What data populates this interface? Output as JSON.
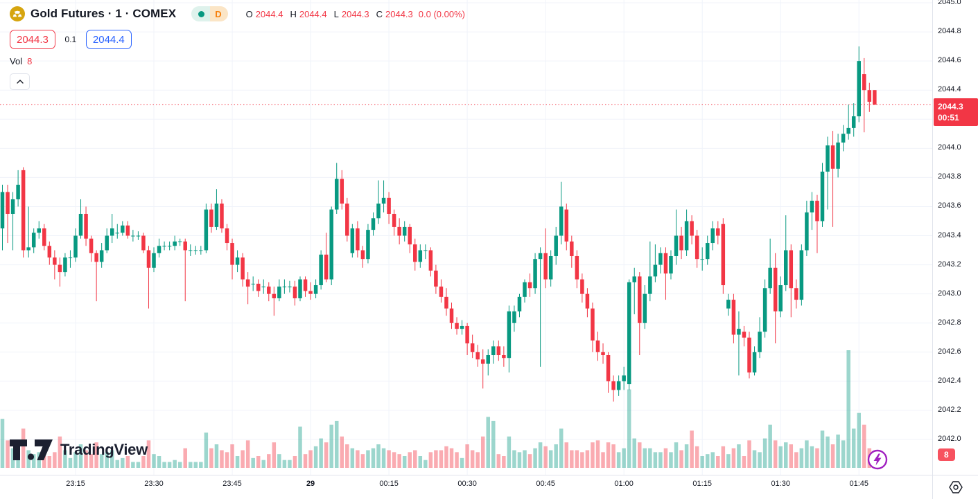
{
  "header": {
    "symbol_icon": "gold-circle-icon",
    "title": "Gold Futures · 1 · COMEX",
    "market_status_icon": "market-status-dot",
    "data_mode_badge": "D",
    "ohlc": {
      "open_label": "O",
      "open": "2044.4",
      "high_label": "H",
      "high": "2044.4",
      "low_label": "L",
      "low": "2044.3",
      "close_label": "C",
      "close": "2044.3",
      "change": "0.0 (0.00%)"
    },
    "bid": "2044.3",
    "spread": "0.1",
    "ask": "2044.4",
    "vol_label": "Vol",
    "vol_value": "8"
  },
  "watermark": {
    "logo_text": "TradingView"
  },
  "price_axis": {
    "ticks": [
      {
        "label": "2045.0",
        "price": 2045.0
      },
      {
        "label": "2044.8",
        "price": 2044.8
      },
      {
        "label": "2044.6",
        "price": 2044.6
      },
      {
        "label": "2044.4",
        "price": 2044.4
      },
      {
        "label": "2044.0",
        "price": 2044.0
      },
      {
        "label": "2043.8",
        "price": 2043.8
      },
      {
        "label": "2043.6",
        "price": 2043.6
      },
      {
        "label": "2043.4",
        "price": 2043.4
      },
      {
        "label": "2043.2",
        "price": 2043.2
      },
      {
        "label": "2043.0",
        "price": 2043.0
      },
      {
        "label": "2042.8",
        "price": 2042.8
      },
      {
        "label": "2042.6",
        "price": 2042.6
      },
      {
        "label": "2042.4",
        "price": 2042.4
      },
      {
        "label": "2042.2",
        "price": 2042.2
      },
      {
        "label": "2042.0",
        "price": 2042.0
      }
    ],
    "last_price_label": {
      "price": "2044.3",
      "countdown": "00:51"
    },
    "vol_badge": "8"
  },
  "time_axis": {
    "ticks": [
      {
        "label": "23:15",
        "index": 14,
        "bold": false
      },
      {
        "label": "23:30",
        "index": 29,
        "bold": false
      },
      {
        "label": "23:45",
        "index": 44,
        "bold": false
      },
      {
        "label": "29",
        "index": 59,
        "bold": true
      },
      {
        "label": "00:15",
        "index": 74,
        "bold": false
      },
      {
        "label": "00:30",
        "index": 89,
        "bold": false
      },
      {
        "label": "00:45",
        "index": 104,
        "bold": false
      },
      {
        "label": "01:00",
        "index": 119,
        "bold": false
      },
      {
        "label": "01:15",
        "index": 134,
        "bold": false
      },
      {
        "label": "01:30",
        "index": 149,
        "bold": false
      },
      {
        "label": "01:45",
        "index": 164,
        "bold": false
      }
    ]
  },
  "colors": {
    "up": "#089981",
    "down": "#f23645",
    "vol_up": "rgba(8,153,129,0.40)",
    "vol_down": "rgba(242,54,69,0.42)",
    "grid": "#f0f3fa",
    "axis_text": "#131722",
    "accent_blue": "#2962ff",
    "last_label_bg": "#f23645",
    "vol_badge_bg": "#f7525f",
    "bolt_purple": "#a020c0",
    "gold": "#d6a50f"
  },
  "chart_data": {
    "type": "candlestick",
    "title": "Gold Futures · 1 · COMEX",
    "interval": "1 minute",
    "first_candle_time": "23:01",
    "last_candle_time": "01:48",
    "session_break_label": "29",
    "last_price": 2044.3,
    "ylim": [
      2041.9,
      2045.05
    ],
    "grid": {
      "top": 2045.0,
      "bottom": 2042.0,
      "step": 0.2
    },
    "legend_position": "top-left",
    "grid_on": true,
    "candles_format": [
      "open",
      "high",
      "low",
      "close",
      "volume"
    ],
    "candles": [
      [
        2043.45,
        2043.75,
        2043.3,
        2043.7,
        25
      ],
      [
        2043.7,
        2043.75,
        2043.35,
        2043.55,
        14
      ],
      [
        2043.55,
        2043.7,
        2043.3,
        2043.65,
        10
      ],
      [
        2043.65,
        2043.85,
        2043.6,
        2043.75,
        9
      ],
      [
        2043.85,
        2043.87,
        2043.25,
        2043.3,
        20
      ],
      [
        2043.3,
        2043.6,
        2043.25,
        2043.32,
        9
      ],
      [
        2043.32,
        2043.45,
        2043.28,
        2043.42,
        7
      ],
      [
        2043.42,
        2043.5,
        2043.38,
        2043.45,
        8
      ],
      [
        2043.45,
        2043.48,
        2043.3,
        2043.33,
        6
      ],
      [
        2043.33,
        2043.36,
        2043.2,
        2043.25,
        6
      ],
      [
        2043.25,
        2043.3,
        2043.1,
        2043.2,
        8
      ],
      [
        2043.2,
        2043.25,
        2043.05,
        2043.15,
        16
      ],
      [
        2043.15,
        2043.28,
        2043.12,
        2043.25,
        9
      ],
      [
        2043.25,
        2043.3,
        2043.18,
        2043.25,
        5
      ],
      [
        2043.25,
        2043.45,
        2043.22,
        2043.4,
        8
      ],
      [
        2043.4,
        2043.65,
        2043.38,
        2043.55,
        12
      ],
      [
        2043.55,
        2043.6,
        2043.33,
        2043.38,
        9
      ],
      [
        2043.38,
        2043.4,
        2043.22,
        2043.28,
        7
      ],
      [
        2043.28,
        2043.3,
        2042.95,
        2043.22,
        13
      ],
      [
        2043.22,
        2043.35,
        2043.18,
        2043.3,
        7
      ],
      [
        2043.3,
        2043.45,
        2043.28,
        2043.4,
        8
      ],
      [
        2043.4,
        2043.55,
        2043.35,
        2043.45,
        9
      ],
      [
        2043.42,
        2043.48,
        2043.38,
        2043.42,
        4
      ],
      [
        2043.42,
        2043.5,
        2043.4,
        2043.47,
        5
      ],
      [
        2043.47,
        2043.5,
        2043.38,
        2043.4,
        6
      ],
      [
        2043.4,
        2043.44,
        2043.36,
        2043.4,
        3
      ],
      [
        2043.4,
        2043.43,
        2043.37,
        2043.4,
        3
      ],
      [
        2043.4,
        2043.42,
        2043.28,
        2043.3,
        6
      ],
      [
        2043.3,
        2043.33,
        2042.9,
        2043.18,
        14
      ],
      [
        2043.18,
        2043.32,
        2043.15,
        2043.28,
        7
      ],
      [
        2043.28,
        2043.38,
        2043.25,
        2043.33,
        6
      ],
      [
        2043.33,
        2043.36,
        2043.3,
        2043.33,
        3
      ],
      [
        2043.33,
        2043.36,
        2043.3,
        2043.33,
        3
      ],
      [
        2043.33,
        2043.4,
        2043.3,
        2043.36,
        4
      ],
      [
        2043.36,
        2043.38,
        2043.33,
        2043.36,
        3
      ],
      [
        2043.36,
        2043.38,
        2042.95,
        2043.3,
        10
      ],
      [
        2043.3,
        2043.34,
        2043.26,
        2043.3,
        3
      ],
      [
        2043.3,
        2043.33,
        2043.27,
        2043.3,
        3
      ],
      [
        2043.3,
        2043.33,
        2043.27,
        2043.3,
        3
      ],
      [
        2043.3,
        2043.62,
        2043.28,
        2043.58,
        18
      ],
      [
        2043.58,
        2043.62,
        2043.42,
        2043.46,
        10
      ],
      [
        2043.46,
        2043.72,
        2043.44,
        2043.62,
        12
      ],
      [
        2043.62,
        2043.65,
        2043.42,
        2043.45,
        9
      ],
      [
        2043.45,
        2043.48,
        2043.3,
        2043.35,
        8
      ],
      [
        2043.35,
        2043.38,
        2043.1,
        2043.2,
        12
      ],
      [
        2043.2,
        2043.3,
        2043.15,
        2043.25,
        6
      ],
      [
        2043.25,
        2043.28,
        2043.05,
        2043.1,
        9
      ],
      [
        2043.1,
        2043.15,
        2042.93,
        2043.05,
        14
      ],
      [
        2043.07,
        2043.12,
        2043.02,
        2043.07,
        5
      ],
      [
        2043.07,
        2043.1,
        2042.98,
        2043.02,
        6
      ],
      [
        2043.05,
        2043.1,
        2043.0,
        2043.05,
        4
      ],
      [
        2043.05,
        2043.08,
        2042.95,
        2043.0,
        7
      ],
      [
        2043.0,
        2043.05,
        2042.85,
        2042.97,
        13
      ],
      [
        2042.97,
        2043.1,
        2042.95,
        2043.05,
        7
      ],
      [
        2043.05,
        2043.1,
        2043.0,
        2043.05,
        4
      ],
      [
        2043.05,
        2043.09,
        2043.01,
        2043.05,
        4
      ],
      [
        2043.05,
        2043.09,
        2042.92,
        2042.97,
        6
      ],
      [
        2042.97,
        2043.12,
        2042.95,
        2043.1,
        21
      ],
      [
        2043.1,
        2043.12,
        2042.98,
        2043.02,
        7
      ],
      [
        2043.02,
        2043.08,
        2042.96,
        2043.0,
        9
      ],
      [
        2043.0,
        2043.1,
        2042.97,
        2043.06,
        11
      ],
      [
        2043.06,
        2043.3,
        2043.03,
        2043.27,
        15
      ],
      [
        2043.27,
        2043.42,
        2043.08,
        2043.1,
        13
      ],
      [
        2043.1,
        2043.6,
        2043.06,
        2043.58,
        22
      ],
      [
        2043.58,
        2043.9,
        2043.55,
        2043.79,
        24
      ],
      [
        2043.79,
        2043.85,
        2043.58,
        2043.62,
        16
      ],
      [
        2043.62,
        2043.66,
        2043.36,
        2043.4,
        12
      ],
      [
        2043.28,
        2043.48,
        2043.25,
        2043.45,
        10
      ],
      [
        2043.45,
        2043.5,
        2043.25,
        2043.3,
        9
      ],
      [
        2043.3,
        2043.33,
        2043.18,
        2043.24,
        7
      ],
      [
        2043.24,
        2043.48,
        2043.21,
        2043.44,
        9
      ],
      [
        2043.44,
        2043.56,
        2043.4,
        2043.52,
        10
      ],
      [
        2043.52,
        2043.78,
        2043.48,
        2043.62,
        12
      ],
      [
        2043.62,
        2043.78,
        2043.56,
        2043.66,
        10
      ],
      [
        2043.66,
        2043.7,
        2043.48,
        2043.55,
        9
      ],
      [
        2043.55,
        2043.58,
        2043.4,
        2043.46,
        8
      ],
      [
        2043.46,
        2043.52,
        2043.34,
        2043.4,
        7
      ],
      [
        2043.4,
        2043.5,
        2043.36,
        2043.46,
        6
      ],
      [
        2043.46,
        2043.48,
        2043.28,
        2043.34,
        8
      ],
      [
        2043.34,
        2043.38,
        2043.16,
        2043.22,
        9
      ],
      [
        2043.22,
        2043.34,
        2043.18,
        2043.3,
        6
      ],
      [
        2043.3,
        2043.34,
        2043.24,
        2043.3,
        4
      ],
      [
        2043.3,
        2043.32,
        2043.12,
        2043.16,
        8
      ],
      [
        2043.16,
        2043.2,
        2043.0,
        2043.05,
        9
      ],
      [
        2043.05,
        2043.1,
        2042.94,
        2042.98,
        9
      ],
      [
        2042.98,
        2043.04,
        2042.85,
        2042.9,
        11
      ],
      [
        2042.9,
        2042.94,
        2042.76,
        2042.8,
        10
      ],
      [
        2042.8,
        2042.84,
        2042.72,
        2042.76,
        8
      ],
      [
        2042.76,
        2042.82,
        2042.72,
        2042.78,
        5
      ],
      [
        2042.78,
        2042.8,
        2042.58,
        2042.66,
        12
      ],
      [
        2042.66,
        2042.72,
        2042.56,
        2042.6,
        9
      ],
      [
        2042.6,
        2042.65,
        2042.5,
        2042.55,
        8
      ],
      [
        2042.55,
        2042.62,
        2042.35,
        2042.52,
        16
      ],
      [
        2042.52,
        2042.62,
        2042.44,
        2042.58,
        26
      ],
      [
        2042.58,
        2042.68,
        2042.52,
        2042.64,
        24
      ],
      [
        2042.64,
        2042.68,
        2042.54,
        2042.58,
        7
      ],
      [
        2042.58,
        2042.64,
        2042.5,
        2042.56,
        6
      ],
      [
        2042.56,
        2042.92,
        2042.46,
        2042.88,
        16
      ],
      [
        2042.8,
        2042.92,
        2042.74,
        2042.88,
        9
      ],
      [
        2042.88,
        2043.0,
        2042.84,
        2042.98,
        8
      ],
      [
        2042.98,
        2043.1,
        2042.94,
        2043.08,
        9
      ],
      [
        2043.08,
        2043.14,
        2042.98,
        2043.04,
        7
      ],
      [
        2043.04,
        2043.28,
        2043.0,
        2043.24,
        10
      ],
      [
        2043.24,
        2043.32,
        2042.5,
        2043.28,
        13
      ],
      [
        2043.28,
        2043.45,
        2043.04,
        2043.1,
        11
      ],
      [
        2043.1,
        2043.3,
        2043.05,
        2043.26,
        9
      ],
      [
        2043.26,
        2043.46,
        2043.2,
        2043.4,
        12
      ],
      [
        2043.4,
        2043.77,
        2043.34,
        2043.6,
        20
      ],
      [
        2043.58,
        2043.62,
        2043.3,
        2043.36,
        13
      ],
      [
        2043.36,
        2043.4,
        2043.18,
        2043.26,
        9
      ],
      [
        2043.26,
        2043.3,
        2043.04,
        2043.1,
        9
      ],
      [
        2043.1,
        2043.14,
        2042.94,
        2043.0,
        8
      ],
      [
        2043.0,
        2043.04,
        2042.84,
        2042.9,
        9
      ],
      [
        2042.9,
        2042.94,
        2042.6,
        2042.68,
        13
      ],
      [
        2042.68,
        2042.74,
        2042.54,
        2042.6,
        14
      ],
      [
        2042.6,
        2042.66,
        2042.52,
        2042.58,
        8
      ],
      [
        2042.58,
        2042.6,
        2042.32,
        2042.4,
        13
      ],
      [
        2042.4,
        2042.44,
        2042.26,
        2042.34,
        12
      ],
      [
        2042.34,
        2042.44,
        2042.3,
        2042.4,
        8
      ],
      [
        2042.4,
        2042.5,
        2042.34,
        2042.44,
        10
      ],
      [
        2042.38,
        2043.1,
        2042.34,
        2043.08,
        40
      ],
      [
        2043.08,
        2043.18,
        2042.86,
        2043.12,
        15
      ],
      [
        2043.12,
        2043.15,
        2042.58,
        2042.8,
        13
      ],
      [
        2042.8,
        2043.06,
        2042.76,
        2043.0,
        10
      ],
      [
        2043.0,
        2043.36,
        2042.95,
        2043.12,
        10
      ],
      [
        2043.12,
        2043.34,
        2043.08,
        2043.2,
        8
      ],
      [
        2043.2,
        2043.32,
        2043.14,
        2043.28,
        8
      ],
      [
        2043.28,
        2043.32,
        2042.96,
        2043.14,
        10
      ],
      [
        2043.14,
        2043.3,
        2043.1,
        2043.26,
        8
      ],
      [
        2043.26,
        2043.58,
        2043.2,
        2043.4,
        13
      ],
      [
        2043.4,
        2043.46,
        2043.24,
        2043.3,
        9
      ],
      [
        2043.3,
        2043.58,
        2043.26,
        2043.5,
        12
      ],
      [
        2043.5,
        2043.54,
        2043.34,
        2043.4,
        19
      ],
      [
        2043.4,
        2043.44,
        2043.18,
        2043.24,
        11
      ],
      [
        2043.24,
        2043.32,
        2043.16,
        2043.24,
        6
      ],
      [
        2043.24,
        2043.4,
        2043.2,
        2043.35,
        7
      ],
      [
        2043.35,
        2043.5,
        2043.3,
        2043.45,
        8
      ],
      [
        2043.45,
        2043.5,
        2043.34,
        2043.4,
        6
      ],
      [
        2043.48,
        2043.52,
        2043.0,
        2043.06,
        11
      ],
      [
        2042.9,
        2043.0,
        2042.85,
        2042.96,
        7
      ],
      [
        2042.96,
        2043.0,
        2042.66,
        2042.72,
        10
      ],
      [
        2042.72,
        2042.88,
        2042.44,
        2042.76,
        12
      ],
      [
        2042.74,
        2042.78,
        2042.64,
        2042.7,
        6
      ],
      [
        2042.7,
        2042.74,
        2042.42,
        2042.46,
        14
      ],
      [
        2042.46,
        2042.64,
        2042.44,
        2042.6,
        9
      ],
      [
        2042.6,
        2042.84,
        2042.56,
        2042.74,
        8
      ],
      [
        2042.74,
        2043.1,
        2042.7,
        2043.04,
        15
      ],
      [
        2043.04,
        2043.38,
        2043.0,
        2043.18,
        22
      ],
      [
        2043.18,
        2043.28,
        2042.66,
        2042.88,
        14
      ],
      [
        2042.88,
        2043.12,
        2042.84,
        2043.06,
        11
      ],
      [
        2043.06,
        2043.54,
        2043.02,
        2043.3,
        13
      ],
      [
        2043.3,
        2043.34,
        2042.84,
        2043.04,
        12
      ],
      [
        2043.04,
        2043.1,
        2042.9,
        2042.96,
        8
      ],
      [
        2042.96,
        2043.34,
        2042.92,
        2043.3,
        10
      ],
      [
        2043.3,
        2043.64,
        2043.26,
        2043.56,
        14
      ],
      [
        2043.56,
        2043.7,
        2043.44,
        2043.64,
        11
      ],
      [
        2043.64,
        2043.68,
        2043.28,
        2043.5,
        10
      ],
      [
        2043.5,
        2043.9,
        2043.46,
        2043.84,
        19
      ],
      [
        2043.84,
        2044.08,
        2043.58,
        2044.02,
        16
      ],
      [
        2044.02,
        2044.12,
        2043.46,
        2043.86,
        12
      ],
      [
        2043.86,
        2044.1,
        2043.8,
        2044.04,
        17
      ],
      [
        2044.04,
        2044.16,
        2043.98,
        2044.1,
        14
      ],
      [
        2044.1,
        2044.3,
        2044.06,
        2044.14,
        60
      ],
      [
        2044.14,
        2044.31,
        2044.08,
        2044.22,
        20
      ],
      [
        2044.22,
        2044.7,
        2044.18,
        2044.6,
        28
      ],
      [
        2044.51,
        2044.62,
        2044.11,
        2044.4,
        22
      ],
      [
        2044.4,
        2044.45,
        2044.25,
        2044.32,
        10
      ],
      [
        2044.4,
        2044.4,
        2044.3,
        2044.3,
        8
      ]
    ]
  }
}
